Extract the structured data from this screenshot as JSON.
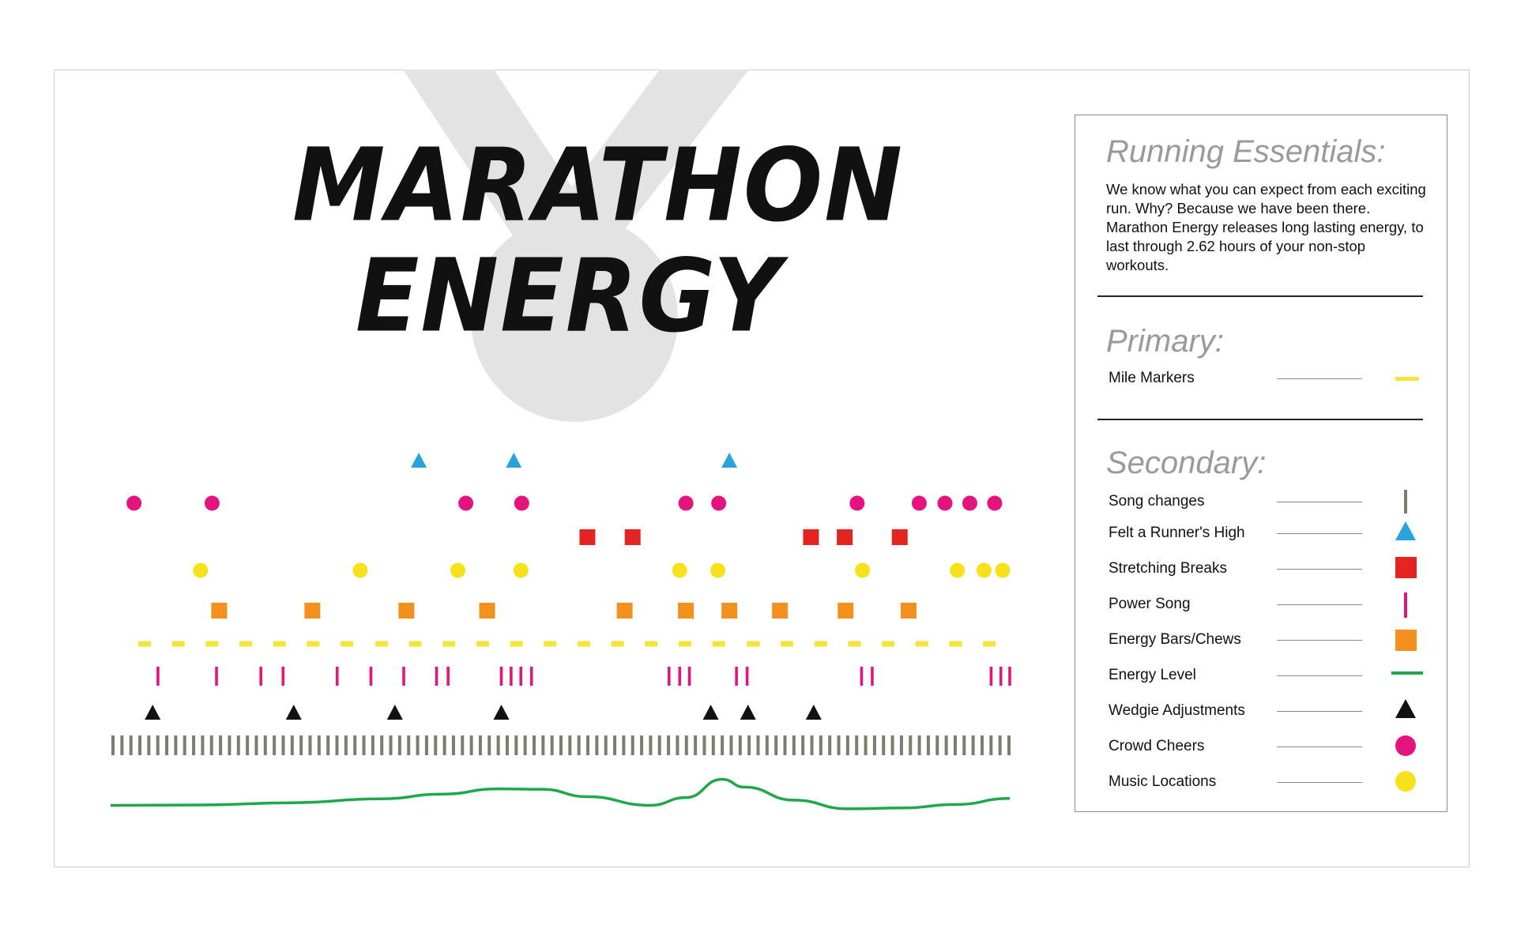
{
  "title": {
    "line1": "MARATHON",
    "line2": "ENERGY"
  },
  "legend": {
    "essentials_heading": "Running Essentials:",
    "essentials_text": "We know what you can expect from each exciting run. Why? Because we have been there. Marathon Energy releases long lasting energy, to last through 2.62 hours of your non-stop workouts.",
    "primary_heading": "Primary:",
    "primary_items": [
      {
        "label": "Mile Markers",
        "symbol": "dash",
        "color": "#f5e53a"
      }
    ],
    "secondary_heading": "Secondary:",
    "secondary_items": [
      {
        "label": "Song changes",
        "symbol": "tick",
        "color": "#7d7d6f"
      },
      {
        "label": "Felt a Runner's High",
        "symbol": "triangle",
        "color": "#2aa3dc"
      },
      {
        "label": "Stretching Breaks",
        "symbol": "square",
        "color": "#e52421"
      },
      {
        "label": "Power Song",
        "symbol": "bar",
        "color": "#e5137d"
      },
      {
        "label": "Energy Bars/Chews",
        "symbol": "square",
        "color": "#f4901e"
      },
      {
        "label": "Energy Level",
        "symbol": "line",
        "color": "#1fa84a"
      },
      {
        "label": "Wedgie Adjustments",
        "symbol": "triangle",
        "color": "#111111"
      },
      {
        "label": "Crowd Cheers",
        "symbol": "circle",
        "color": "#e5137d"
      },
      {
        "label": "Music Locations",
        "symbol": "circle",
        "color": "#f7e11b"
      }
    ]
  },
  "chart_data": {
    "type": "scatter",
    "x_unit": "race progress (0 = start, 1 = finish)",
    "series": [
      {
        "name": "Felt a Runner's High",
        "symbol": "triangle",
        "color": "#2aa3dc",
        "x": [
          0.334,
          0.441,
          0.684
        ]
      },
      {
        "name": "Crowd Cheers",
        "symbol": "circle",
        "color": "#e5137d",
        "x": [
          0.013,
          0.101,
          0.387,
          0.45,
          0.635,
          0.672,
          0.828,
          0.898,
          0.927,
          0.955,
          0.983
        ]
      },
      {
        "name": "Stretching Breaks",
        "symbol": "square",
        "color": "#e52421",
        "x": [
          0.524,
          0.575,
          0.776,
          0.814,
          0.876
        ]
      },
      {
        "name": "Music Locations",
        "symbol": "circle",
        "color": "#f7e11b",
        "x": [
          0.088,
          0.268,
          0.378,
          0.449,
          0.628,
          0.671,
          0.834,
          0.941,
          0.971,
          0.992
        ]
      },
      {
        "name": "Energy Bars/Chews",
        "symbol": "square",
        "color": "#f4901e",
        "x": [
          0.109,
          0.214,
          0.32,
          0.411,
          0.566,
          0.635,
          0.684,
          0.741,
          0.815,
          0.886
        ]
      },
      {
        "name": "Mile Markers",
        "symbol": "dash",
        "color": "#f5e53a",
        "x": [
          0.025,
          0.063,
          0.101,
          0.139,
          0.177,
          0.215,
          0.253,
          0.292,
          0.33,
          0.368,
          0.406,
          0.444,
          0.482,
          0.52,
          0.558,
          0.596,
          0.634,
          0.672,
          0.711,
          0.749,
          0.787,
          0.825,
          0.863,
          0.901,
          0.939,
          0.977
        ]
      },
      {
        "name": "Power Song",
        "symbol": "bar",
        "color": "#e5137d",
        "x": [
          0.04,
          0.106,
          0.156,
          0.181,
          0.242,
          0.28,
          0.317,
          0.354,
          0.367,
          0.427,
          0.438,
          0.449,
          0.461,
          0.616,
          0.628,
          0.639,
          0.692,
          0.704,
          0.833,
          0.845,
          0.979,
          0.99,
          1.0
        ]
      },
      {
        "name": "Wedgie Adjustments",
        "symbol": "triangle",
        "color": "#111111",
        "x": [
          0.034,
          0.193,
          0.307,
          0.427,
          0.663,
          0.705,
          0.779
        ]
      },
      {
        "name": "Song changes",
        "symbol": "tick",
        "color": "#7d7d6f",
        "count": 101
      },
      {
        "name": "Energy Level",
        "symbol": "line",
        "color": "#1fa84a",
        "x": [
          0.0,
          0.1,
          0.2,
          0.3,
          0.37,
          0.43,
          0.48,
          0.53,
          0.6,
          0.64,
          0.68,
          0.705,
          0.76,
          0.82,
          0.88,
          0.94,
          1.0
        ],
        "y": [
          0.1,
          0.11,
          0.16,
          0.25,
          0.36,
          0.48,
          0.47,
          0.3,
          0.1,
          0.28,
          0.7,
          0.52,
          0.22,
          0.02,
          0.04,
          0.12,
          0.26
        ]
      }
    ]
  }
}
